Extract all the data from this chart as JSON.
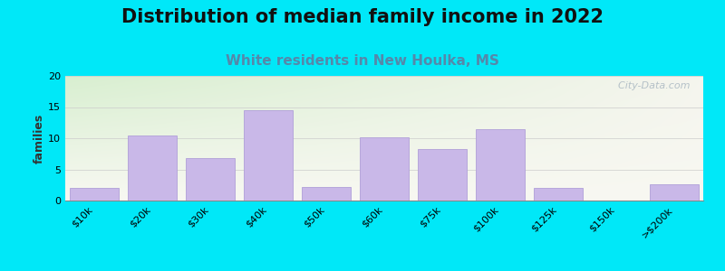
{
  "title": "Distribution of median family income in 2022",
  "subtitle": "White residents in New Houlka, MS",
  "ylabel": "families",
  "categories": [
    "$10k",
    "$20k",
    "$30k",
    "$40k",
    "$50k",
    "$60k",
    "$75k",
    "$100k",
    "$125k",
    "$150k",
    ">$200k"
  ],
  "values": [
    2,
    10.5,
    6.8,
    14.5,
    2.2,
    10.2,
    8.2,
    11.5,
    2.0,
    0,
    2.6
  ],
  "bar_color": "#c9b8e8",
  "bar_edge_color": "#b0a0d8",
  "ylim": [
    0,
    20
  ],
  "yticks": [
    0,
    5,
    10,
    15,
    20
  ],
  "background_outer": "#00e8f8",
  "bg_top_left": "#d8efd0",
  "bg_bottom_right": "#f5f5ee",
  "title_fontsize": 15,
  "subtitle_fontsize": 11,
  "subtitle_color": "#5588aa",
  "watermark": "  City-Data.com",
  "watermark_color": "#aab8c2",
  "watermark_icon_color": "#b0bec8"
}
